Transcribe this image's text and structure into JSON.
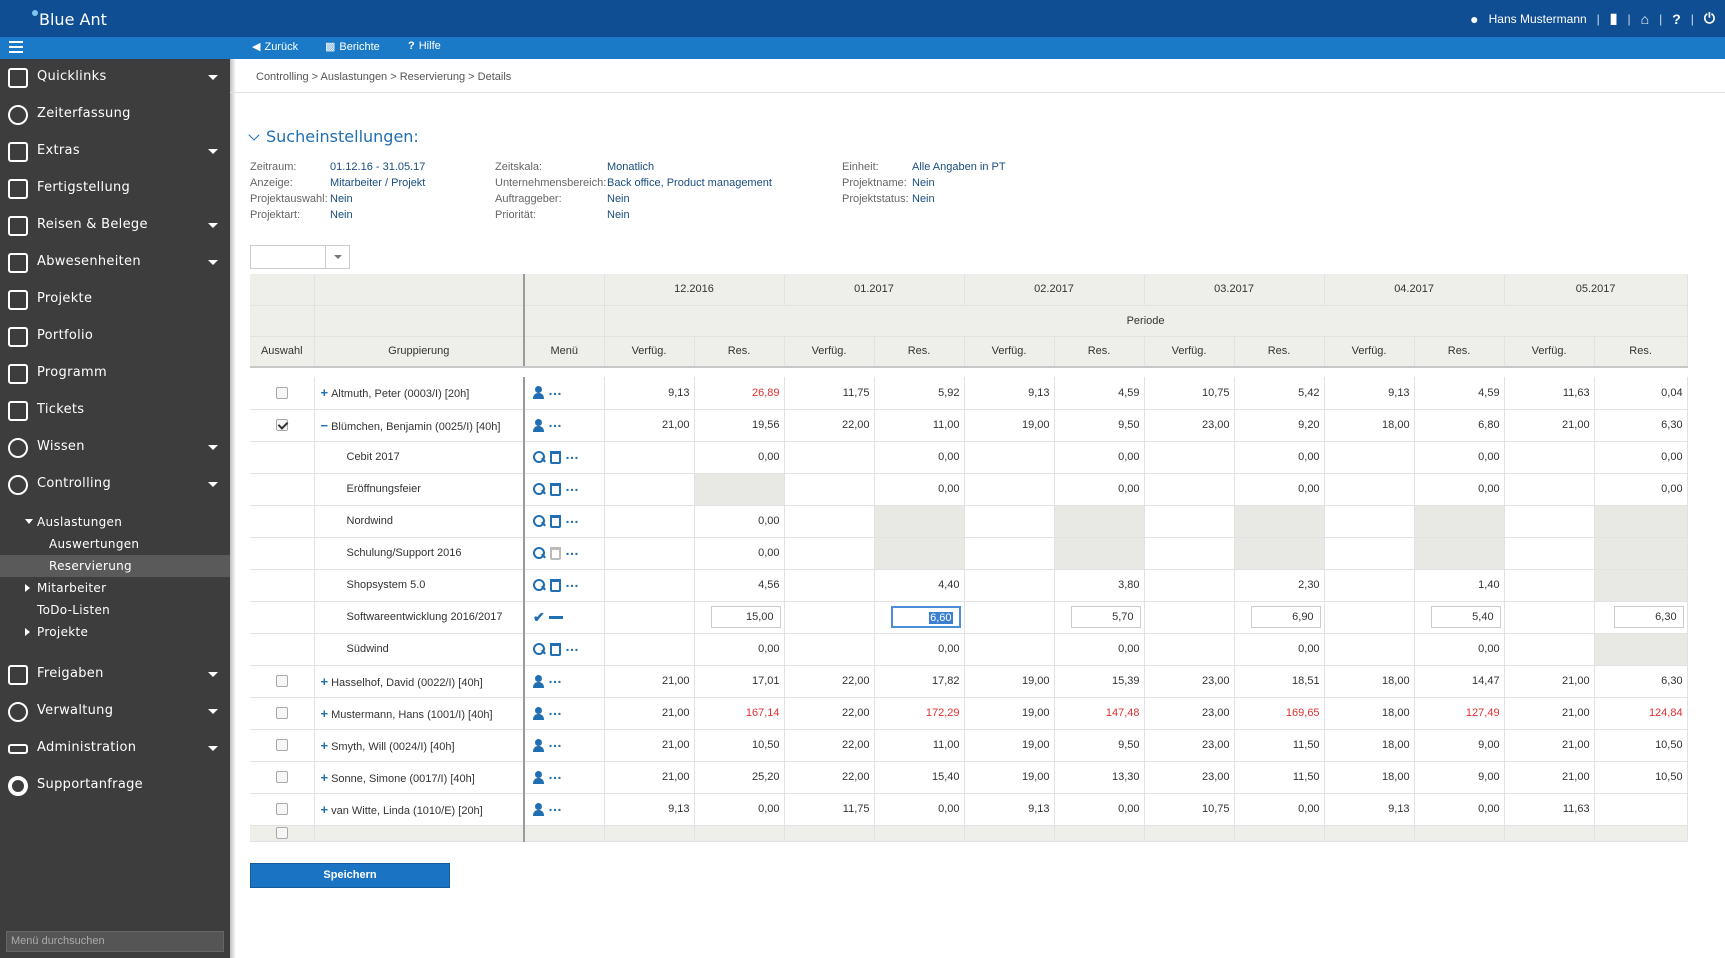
{
  "app": {
    "logo": "Blue Ant",
    "user": "Hans Mustermann"
  },
  "toolbar": {
    "back": "Zurück",
    "reports": "Berichte",
    "help": "Hilfe"
  },
  "nav": {
    "quicklinks": "Quicklinks",
    "zeiterfassung": "Zeiterfassung",
    "extras": "Extras",
    "fertigstellung": "Fertigstellung",
    "reisen": "Reisen & Belege",
    "abwesenheiten": "Abwesenheiten",
    "projekte": "Projekte",
    "portfolio": "Portfolio",
    "programm": "Programm",
    "tickets": "Tickets",
    "wissen": "Wissen",
    "controlling": "Controlling",
    "auslastungen": "Auslastungen",
    "auswertungen": "Auswertungen",
    "reservierung": "Reservierung",
    "mitarbeiter": "Mitarbeiter",
    "todo": "ToDo-Listen",
    "projekte_sub": "Projekte",
    "freigaben": "Freigaben",
    "verwaltung": "Verwaltung",
    "administration": "Administration",
    "supportanfrage": "Supportanfrage",
    "search_placeholder": "Menü durchsuchen"
  },
  "breadcrumb": "Controlling  >  Auslastungen  >  Reservierung  >  Details",
  "search": {
    "title": "Sucheinstellungen:",
    "col1": [
      [
        "Zeitraum:",
        "01.12.16 - 31.05.17"
      ],
      [
        "Anzeige:",
        "Mitarbeiter / Projekt"
      ],
      [
        "Projektauswahl:",
        "Nein"
      ],
      [
        "Projektart:",
        "Nein"
      ]
    ],
    "col2": [
      [
        "Zeitskala:",
        "Monatlich"
      ],
      [
        "Unternehmensbereich:",
        "Back office, Product management"
      ],
      [
        "Auftraggeber:",
        "Nein"
      ],
      [
        "Priorität:",
        "Nein"
      ]
    ],
    "col3": [
      [
        "Einheit:",
        "Alle Angaben in PT"
      ],
      [
        "Projektname:",
        "Nein"
      ],
      [
        "Projektstatus:",
        "Nein"
      ]
    ]
  },
  "table": {
    "months": [
      "12.2016",
      "01.2017",
      "02.2017",
      "03.2017",
      "04.2017",
      "05.2017"
    ],
    "periode": "Periode",
    "h_auswahl": "Auswahl",
    "h_gruppierung": "Gruppierung",
    "h_menu": "Menü",
    "h_verf": "Verfüg.",
    "h_res": "Res."
  },
  "rows": [
    {
      "type": "person",
      "checked": false,
      "label": "Altmuth, Peter (0003/I) [20h]",
      "exp": "+",
      "vals": [
        "9,13",
        "26,89",
        "11,75",
        "5,92",
        "9,13",
        "4,59",
        "10,75",
        "5,42",
        "9,13",
        "4,59",
        "11,63",
        "0,04"
      ],
      "red": [
        1
      ]
    },
    {
      "type": "person",
      "checked": true,
      "label": "Blümchen, Benjamin (0025/I) [40h]",
      "exp": "−",
      "vals": [
        "21,00",
        "19,56",
        "22,00",
        "11,00",
        "19,00",
        "9,50",
        "23,00",
        "9,20",
        "18,00",
        "6,80",
        "21,00",
        "6,30"
      ],
      "red": []
    },
    {
      "type": "project",
      "label": "Cebit 2017",
      "vals": [
        "",
        "0,00",
        "",
        "0,00",
        "",
        "0,00",
        "",
        "0,00",
        "",
        "0,00",
        "",
        "0,00"
      ],
      "gray": []
    },
    {
      "type": "project",
      "label": "Eröffnungsfeier",
      "vals": [
        "",
        "",
        "",
        "0,00",
        "",
        "0,00",
        "",
        "0,00",
        "",
        "0,00",
        "",
        "0,00"
      ],
      "gray": [
        1
      ]
    },
    {
      "type": "project",
      "label": "Nordwind",
      "vals": [
        "",
        "0,00",
        "",
        "",
        "",
        "",
        "",
        "",
        "",
        "",
        "",
        ""
      ],
      "gray": [
        3,
        5,
        7,
        9,
        11
      ]
    },
    {
      "type": "project",
      "label": "Schulung/Support 2016",
      "trashdis": true,
      "vals": [
        "",
        "0,00",
        "",
        "",
        "",
        "",
        "",
        "",
        "",
        "",
        "",
        ""
      ],
      "gray": [
        3,
        5,
        7,
        9,
        11
      ]
    },
    {
      "type": "project",
      "label": "Shopsystem 5.0",
      "vals": [
        "",
        "4,56",
        "",
        "4,40",
        "",
        "3,80",
        "",
        "2,30",
        "",
        "1,40",
        "",
        ""
      ],
      "gray": [
        11
      ]
    },
    {
      "type": "edit",
      "label": "Softwareentwicklung 2016/2017",
      "vals": [
        "",
        "15,00",
        "",
        "6,60",
        "",
        "5,70",
        "",
        "6,90",
        "",
        "5,40",
        "",
        "6,30"
      ]
    },
    {
      "type": "project",
      "label": "Südwind",
      "vals": [
        "",
        "0,00",
        "",
        "0,00",
        "",
        "0,00",
        "",
        "0,00",
        "",
        "0,00",
        "",
        ""
      ],
      "gray": [
        11
      ]
    },
    {
      "type": "person",
      "checked": false,
      "label": "Hasselhof, David (0022/I) [40h]",
      "exp": "+",
      "vals": [
        "21,00",
        "17,01",
        "22,00",
        "17,82",
        "19,00",
        "15,39",
        "23,00",
        "18,51",
        "18,00",
        "14,47",
        "21,00",
        "6,30"
      ],
      "red": []
    },
    {
      "type": "person",
      "checked": false,
      "label": "Mustermann, Hans (1001/I) [40h]",
      "exp": "+",
      "vals": [
        "21,00",
        "167,14",
        "22,00",
        "172,29",
        "19,00",
        "147,48",
        "23,00",
        "169,65",
        "18,00",
        "127,49",
        "21,00",
        "124,84"
      ],
      "red": [
        1,
        3,
        5,
        7,
        9,
        11
      ]
    },
    {
      "type": "person",
      "checked": false,
      "label": "Smyth, Will (0024/I) [40h]",
      "exp": "+",
      "vals": [
        "21,00",
        "10,50",
        "22,00",
        "11,00",
        "19,00",
        "9,50",
        "23,00",
        "11,50",
        "18,00",
        "9,00",
        "21,00",
        "10,50"
      ],
      "red": []
    },
    {
      "type": "person",
      "checked": false,
      "label": "Sonne, Simone (0017/I) [40h]",
      "exp": "+",
      "vals": [
        "21,00",
        "25,20",
        "22,00",
        "15,40",
        "19,00",
        "13,30",
        "23,00",
        "11,50",
        "18,00",
        "9,00",
        "21,00",
        "10,50"
      ],
      "red": []
    },
    {
      "type": "person",
      "checked": false,
      "label": "van Witte, Linda (1010/E) [20h]",
      "exp": "+",
      "vals": [
        "9,13",
        "0,00",
        "11,75",
        "0,00",
        "9,13",
        "0,00",
        "10,75",
        "0,00",
        "9,13",
        "0,00",
        "11,63",
        ""
      ],
      "red": []
    }
  ],
  "save": "Speichern"
}
